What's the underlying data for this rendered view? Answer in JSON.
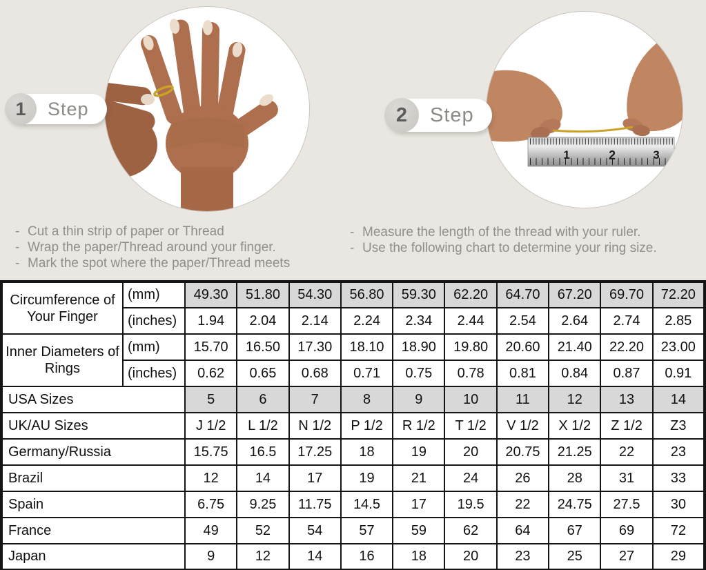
{
  "theme": {
    "background": "#eae7e2",
    "table_border": "#141414",
    "shaded_cell": "#d8d8d8",
    "muted_text": "#8f8e89",
    "gold_thread": "#c9a227",
    "skin_tone": "#ad6f4d"
  },
  "steps": [
    {
      "number": "1",
      "label": "Step",
      "image": "hand-with-ring-thread-photo",
      "instructions": [
        "Cut a thin strip of paper or Thread",
        "Wrap the paper/Thread around your finger.",
        "Mark the spot where the paper/Thread meets"
      ]
    },
    {
      "number": "2",
      "label": "Step",
      "image": "measuring-thread-with-ruler-photo",
      "ruler_numbers": [
        "1",
        "2",
        "3"
      ],
      "instructions": [
        "Measure the length of the thread with your ruler.",
        "Use the following chart to determine your ring size."
      ]
    }
  ],
  "table": {
    "row_groups": [
      {
        "label": "Circumference of Your Finger",
        "rows": [
          {
            "unit": "(mm)",
            "shaded": true,
            "values": [
              "49.30",
              "51.80",
              "54.30",
              "56.80",
              "59.30",
              "62.20",
              "64.70",
              "67.20",
              "69.70",
              "72.20"
            ]
          },
          {
            "unit": "(inches)",
            "shaded": false,
            "values": [
              "1.94",
              "2.04",
              "2.14",
              "2.24",
              "2.34",
              "2.44",
              "2.54",
              "2.64",
              "2.74",
              "2.85"
            ]
          }
        ]
      },
      {
        "label": "Inner Diameters of Rings",
        "rows": [
          {
            "unit": "(mm)",
            "shaded": false,
            "values": [
              "15.70",
              "16.50",
              "17.30",
              "18.10",
              "18.90",
              "19.80",
              "20.60",
              "21.40",
              "22.20",
              "23.00"
            ]
          },
          {
            "unit": "(inches)",
            "shaded": false,
            "values": [
              "0.62",
              "0.65",
              "0.68",
              "0.71",
              "0.75",
              "0.78",
              "0.81",
              "0.84",
              "0.87",
              "0.91"
            ]
          }
        ]
      }
    ],
    "size_rows": [
      {
        "label": "USA Sizes",
        "shaded": true,
        "values": [
          "5",
          "6",
          "7",
          "8",
          "9",
          "10",
          "11",
          "12",
          "13",
          "14"
        ]
      },
      {
        "label": "UK/AU Sizes",
        "shaded": false,
        "values": [
          "J 1/2",
          "L 1/2",
          "N 1/2",
          "P 1/2",
          "R 1/2",
          "T 1/2",
          "V 1/2",
          "X 1/2",
          "Z 1/2",
          "Z3"
        ]
      },
      {
        "label": "Germany/Russia",
        "shaded": false,
        "values": [
          "15.75",
          "16.5",
          "17.25",
          "18",
          "19",
          "20",
          "20.75",
          "21.25",
          "22",
          "23"
        ]
      },
      {
        "label": "Brazil",
        "shaded": false,
        "values": [
          "12",
          "14",
          "17",
          "19",
          "21",
          "24",
          "26",
          "28",
          "31",
          "33"
        ]
      },
      {
        "label": "Spain",
        "shaded": false,
        "values": [
          "6.75",
          "9.25",
          "11.75",
          "14.5",
          "17",
          "19.5",
          "22",
          "24.75",
          "27.5",
          "30"
        ]
      },
      {
        "label": "France",
        "shaded": false,
        "values": [
          "49",
          "52",
          "54",
          "57",
          "59",
          "62",
          "64",
          "67",
          "69",
          "72"
        ]
      },
      {
        "label": "Japan",
        "shaded": false,
        "values": [
          "9",
          "12",
          "14",
          "16",
          "18",
          "20",
          "23",
          "25",
          "27",
          "29"
        ]
      }
    ]
  }
}
